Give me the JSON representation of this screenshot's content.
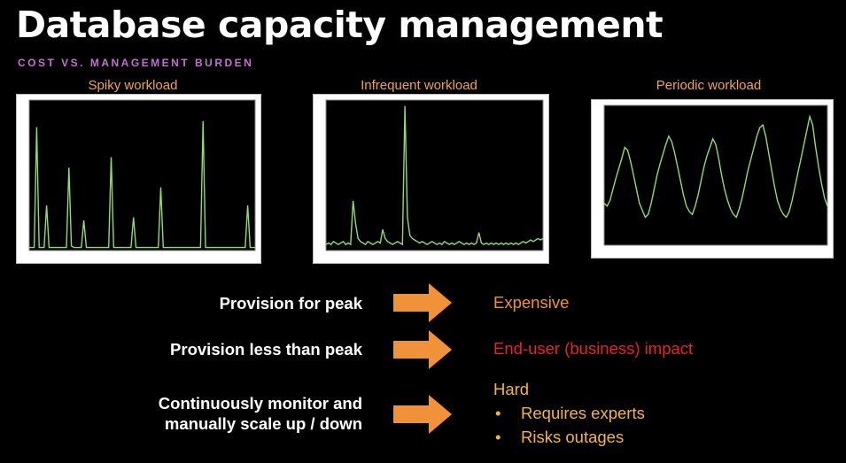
{
  "slide": {
    "title": "Database capacity management",
    "subtitle": "COST VS. MANAGEMENT BURDEN"
  },
  "charts": [
    {
      "caption": "Spiky workload"
    },
    {
      "caption": "Infrequent workload"
    },
    {
      "caption": "Periodic workload"
    }
  ],
  "rows": [
    {
      "label": "Provision for peak",
      "result": "Expensive",
      "result_color": "#f0923a"
    },
    {
      "label": "Provision less than peak",
      "result": "End-user (business) impact",
      "result_color": "#e8261f"
    },
    {
      "label_line1": "Continuously monitor and",
      "label_line2": "manually scale up / down",
      "result": "Hard",
      "result_color": "#f5b43b",
      "bullets": [
        "Requires experts",
        "Risks outages"
      ],
      "bullet_mark": "•"
    }
  ],
  "colors": {
    "accent_arrow": "#f0923a",
    "subtitle": "#c86dd7",
    "series_line": "#8fdc6f"
  },
  "chart_data": [
    {
      "type": "line",
      "title": "Spiky workload",
      "series": [
        {
          "values": [
            2,
            2,
            2,
            82,
            2,
            2,
            2,
            30,
            2,
            2,
            2,
            2,
            2,
            2,
            2,
            2,
            55,
            3,
            2,
            2,
            2,
            2,
            20,
            2,
            2,
            2,
            2,
            2,
            2,
            2,
            2,
            2,
            2,
            62,
            2,
            2,
            2,
            2,
            2,
            2,
            2,
            2,
            22,
            2,
            2,
            2,
            2,
            2,
            2,
            2,
            2,
            2,
            2,
            42,
            2,
            2,
            2,
            2,
            2,
            2,
            2,
            2,
            2,
            2,
            2,
            2,
            2,
            2,
            2,
            2,
            86,
            2,
            2,
            2,
            2,
            2,
            2,
            2,
            2,
            2,
            2,
            2,
            2,
            2,
            2,
            2,
            2,
            2,
            30,
            2,
            2,
            2
          ]
        }
      ]
    },
    {
      "type": "line",
      "title": "Infrequent workload",
      "series": [
        {
          "values": [
            4,
            5,
            4,
            6,
            5,
            4,
            5,
            6,
            4,
            5,
            4,
            33,
            18,
            8,
            6,
            5,
            4,
            6,
            5,
            4,
            5,
            6,
            5,
            14,
            8,
            6,
            5,
            4,
            5,
            6,
            5,
            4,
            96,
            22,
            10,
            8,
            7,
            6,
            5,
            6,
            5,
            4,
            5,
            6,
            5,
            4,
            5,
            4,
            6,
            5,
            4,
            5,
            4,
            5,
            6,
            5,
            4,
            5,
            4,
            5,
            4,
            5,
            12,
            5,
            4,
            5,
            4,
            5,
            4,
            5,
            4,
            5,
            4,
            5,
            4,
            5,
            4,
            5,
            4,
            5,
            6,
            5,
            6,
            7,
            6,
            7,
            8,
            7,
            8
          ]
        }
      ]
    },
    {
      "type": "line",
      "title": "Periodic workload",
      "series": [
        {
          "values": [
            30,
            28,
            32,
            40,
            48,
            55,
            62,
            70,
            68,
            60,
            50,
            40,
            30,
            25,
            20,
            22,
            30,
            40,
            50,
            58,
            65,
            72,
            78,
            74,
            66,
            56,
            46,
            36,
            28,
            24,
            22,
            28,
            36,
            46,
            56,
            64,
            70,
            76,
            72,
            62,
            50,
            40,
            32,
            26,
            22,
            20,
            26,
            34,
            44,
            54,
            62,
            70,
            78,
            84,
            86,
            78,
            66,
            54,
            42,
            32,
            26,
            22,
            20,
            24,
            32,
            42,
            52,
            62,
            72,
            82,
            92,
            86,
            70,
            56,
            44,
            34,
            28
          ]
        }
      ]
    }
  ]
}
